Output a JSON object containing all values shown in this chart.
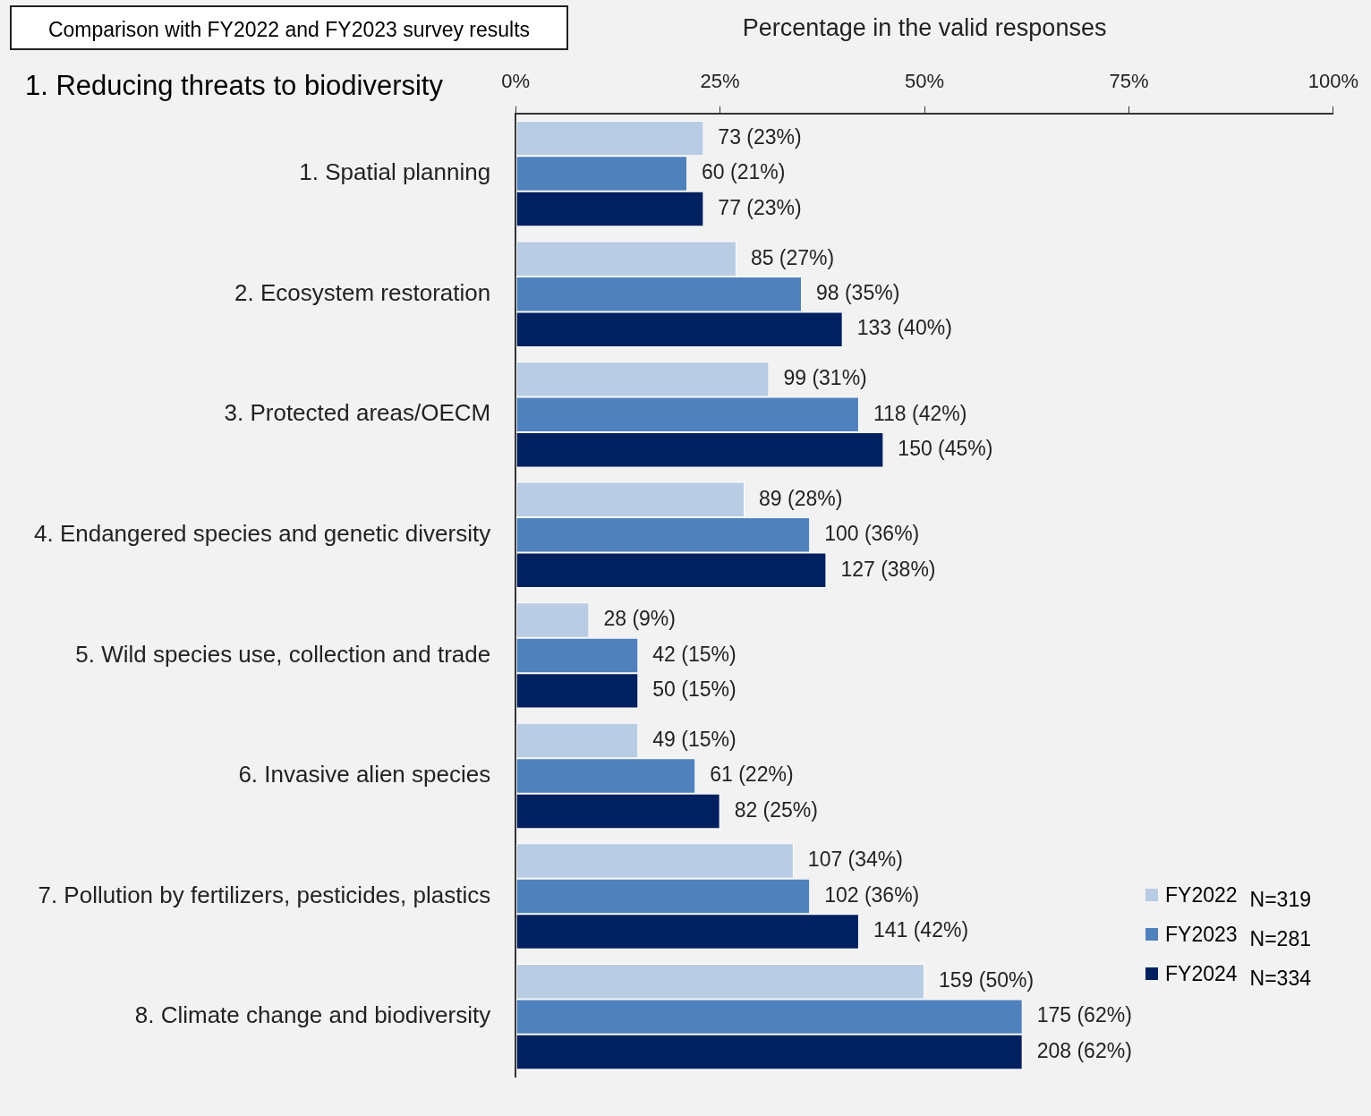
{
  "chart_data": {
    "type": "bar",
    "orientation": "horizontal",
    "title": "1. Reducing threats to biodiversity",
    "subtitle": "Comparison with FY2022 and FY2023 survey results",
    "xlabel": "Percentage in the valid responses",
    "categories": [
      "1. Spatial planning",
      "2. Ecosystem restoration",
      "3. Protected areas/OECM",
      "4. Endangered species and genetic diversity",
      "5. Wild species use, collection and trade",
      "6. Invasive alien species",
      "7. Pollution by fertilizers, pesticides, plastics",
      "8. Climate change and biodiversity"
    ],
    "series": [
      {
        "name": "FY2022",
        "color": "#b8cce4",
        "values": [
          23,
          27,
          31,
          28,
          9,
          15,
          34,
          50
        ],
        "value_labels": [
          "73 (23%)",
          "85 (27%)",
          "99 (31%)",
          "89 (28%)",
          "28 (9%)",
          "49 (15%)",
          "107 (34%)",
          "159 (50%)"
        ]
      },
      {
        "name": "FY2023",
        "color": "#4f81bd",
        "values": [
          21,
          35,
          42,
          36,
          15,
          22,
          36,
          62
        ],
        "value_labels": [
          "60 (21%)",
          "98 (35%)",
          "118 (42%)",
          "100 (36%)",
          "42 (15%)",
          "61 (22%)",
          "102 (36%)",
          "175 (62%)"
        ]
      },
      {
        "name": "FY2024",
        "color": "#002060",
        "values": [
          23,
          40,
          45,
          38,
          15,
          25,
          42,
          62
        ],
        "value_labels": [
          "77 (23%)",
          "133 (40%)",
          "150 (45%)",
          "127 (38%)",
          "50 (15%)",
          "82 (25%)",
          "141 (42%)",
          "208 (62%)"
        ]
      }
    ],
    "annotations": [
      "N=319",
      "N=281",
      "N=334"
    ],
    "xlim": [
      0,
      100
    ],
    "xticks": [
      {
        "value": 0,
        "label": "0%"
      },
      {
        "value": 25,
        "label": "25%"
      },
      {
        "value": 50,
        "label": "50%"
      },
      {
        "value": 75,
        "label": "75%"
      },
      {
        "value": 100,
        "label": "100%"
      }
    ],
    "legend": "bottom right",
    "grid": false
  }
}
